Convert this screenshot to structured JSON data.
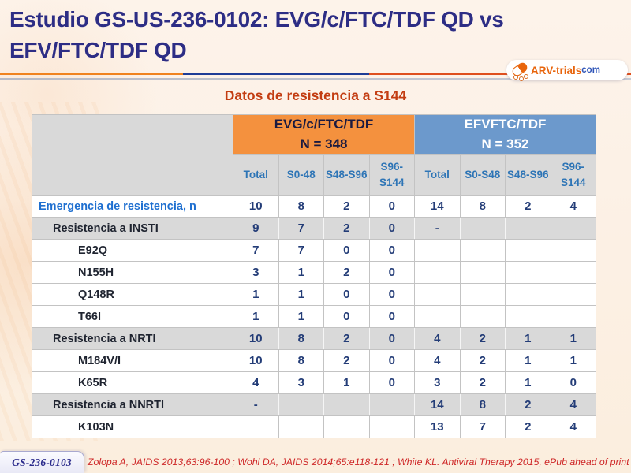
{
  "slide": {
    "title_line1": "Estudio GS-US-236-0102: EVG/c/FTC/TDF QD vs",
    "title_line2": "EFV/FTC/TDF QD",
    "subtitle": "Datos de resistencia a S144",
    "footer_code": "GS-236-0103",
    "citation": "Zolopa A, JAIDS 2013;63:96-100 ; Wohl DA, JAIDS 2014;65:e118-121 ; White KL. Antiviral Therapy 2015, ePub ahead of print"
  },
  "logo": {
    "icon": "pill-capsule-icon",
    "brand": "ARV-trials",
    "tld": "com"
  },
  "colors": {
    "title": "#2d2d85",
    "subtitle": "#c33d12",
    "evg_header_bg": "#f4913e",
    "efv_header_bg": "#6c99cc",
    "subheader_text": "#2e75b6",
    "row_gray_bg": "#d9d9d9",
    "data_text": "#233c77",
    "primary_row_label": "#1e6fd0",
    "citation_text": "#ce2727",
    "divider_orange": "#f0831f",
    "divider_navy": "#1e3c96",
    "divider_red_orange": "#df4f1e"
  },
  "table": {
    "groups": [
      {
        "name": "EVG/c/FTC/TDF",
        "n": "N = 348"
      },
      {
        "name": "EFVFTC/TDF",
        "n": "N = 352"
      }
    ],
    "columns": [
      "Total",
      "S0-48",
      "S48-S96",
      "S96-S144",
      "Total",
      "S0-S48",
      "S48-S96",
      "S96-S144"
    ],
    "rows": [
      {
        "label": "Emergencia de resistencia, n",
        "style": "primary",
        "values": [
          "10",
          "8",
          "2",
          "0",
          "14",
          "8",
          "2",
          "4"
        ]
      },
      {
        "label": "Resistencia a INSTI",
        "style": "category",
        "values": [
          "9",
          "7",
          "2",
          "0",
          "-",
          "",
          "",
          ""
        ]
      },
      {
        "label": "E92Q",
        "style": "mutation",
        "values": [
          "7",
          "7",
          "0",
          "0",
          "",
          "",
          "",
          ""
        ]
      },
      {
        "label": "N155H",
        "style": "mutation",
        "values": [
          "3",
          "1",
          "2",
          "0",
          "",
          "",
          "",
          ""
        ]
      },
      {
        "label": "Q148R",
        "style": "mutation",
        "values": [
          "1",
          "1",
          "0",
          "0",
          "",
          "",
          "",
          ""
        ]
      },
      {
        "label": "T66I",
        "style": "mutation",
        "values": [
          "1",
          "1",
          "0",
          "0",
          "",
          "",
          "",
          ""
        ]
      },
      {
        "label": "Resistencia a NRTI",
        "style": "category",
        "values": [
          "10",
          "8",
          "2",
          "0",
          "4",
          "2",
          "1",
          "1"
        ]
      },
      {
        "label": "M184V/I",
        "style": "mutation",
        "values": [
          "10",
          "8",
          "2",
          "0",
          "4",
          "2",
          "1",
          "1"
        ]
      },
      {
        "label": "K65R",
        "style": "mutation",
        "values": [
          "4",
          "3",
          "1",
          "0",
          "3",
          "2",
          "1",
          "0"
        ]
      },
      {
        "label": "Resistencia a NNRTI",
        "style": "category",
        "values": [
          "-",
          "",
          "",
          "",
          "14",
          "8",
          "2",
          "4"
        ]
      },
      {
        "label": "K103N",
        "style": "mutation",
        "values": [
          "",
          "",
          "",
          "",
          "13",
          "7",
          "2",
          "4"
        ]
      }
    ]
  }
}
